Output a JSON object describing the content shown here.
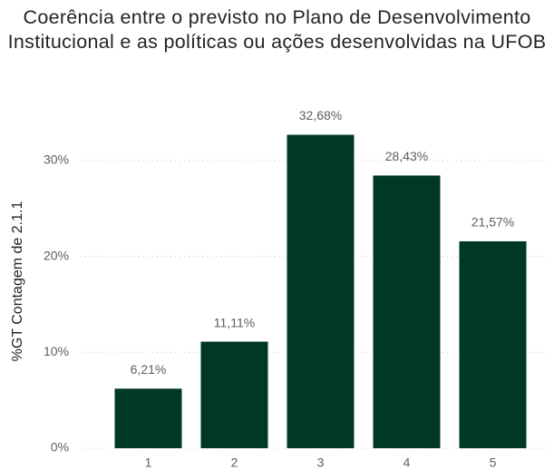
{
  "chart_data": {
    "type": "bar",
    "title": "Coerência entre o previsto no Plano de Desenvolvimento Institucional e as políticas ou ações desenvolvidas na UFOB",
    "y_label": "%GT Contagem de 2.1.1",
    "categories": [
      "1",
      "2",
      "3",
      "4",
      "5"
    ],
    "values": [
      6.21,
      11.11,
      32.68,
      28.43,
      21.57
    ],
    "value_labels": [
      "6,21%",
      "11,11%",
      "32,68%",
      "28,43%",
      "21,57%"
    ],
    "color": "#003828",
    "ylim": [
      0,
      35
    ],
    "yticks": [
      {
        "value": 0,
        "label": "0%"
      },
      {
        "value": 10,
        "label": "10%"
      },
      {
        "value": 20,
        "label": "20%"
      },
      {
        "value": 30,
        "label": "30%"
      }
    ],
    "grid": true
  }
}
